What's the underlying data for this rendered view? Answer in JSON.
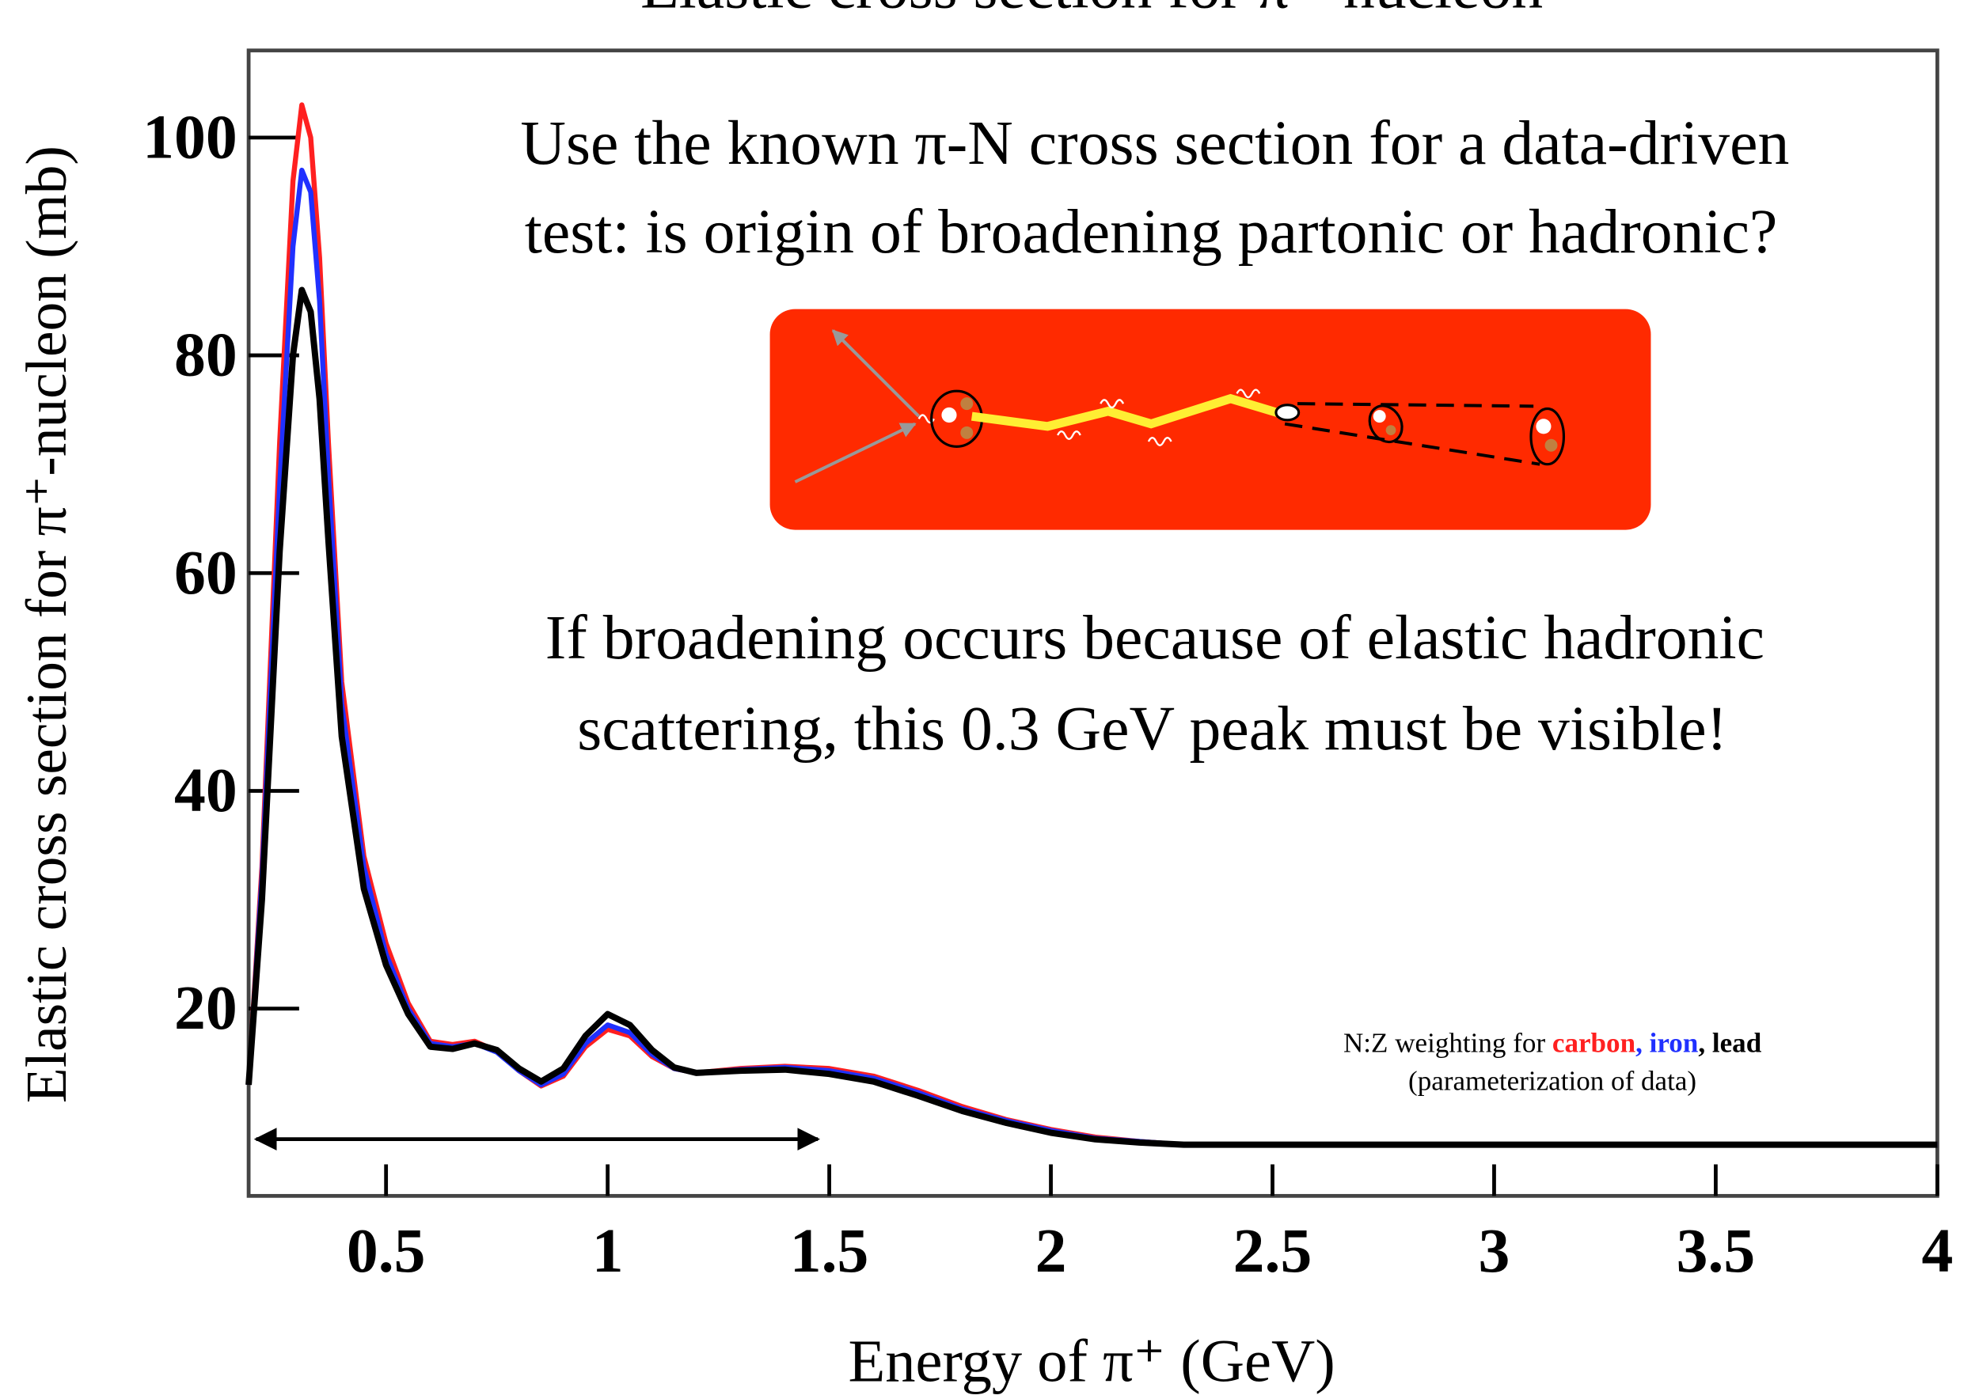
{
  "chart_data": {
    "type": "line",
    "title": "Elastic cross section for π⁺-nucleon",
    "x_label": "Energy of π⁺ (GeV)",
    "y_label": "Elastic cross section for π⁺-nucleon (mb)",
    "annotations": {
      "question": [
        "Use the known π-N cross section for a data-driven",
        "test: is origin of broadening partonic or hadronic?"
      ],
      "claim": [
        "If broadening occurs because of elastic hadronic",
        "scattering, this 0.3 GeV peak must be visible!"
      ],
      "legend_prefix": "N:Z weighting for",
      "legend_separator": ",",
      "legend_note": "(parameterization of data)"
    },
    "x": [
      0.19,
      0.22,
      0.26,
      0.29,
      0.31,
      0.33,
      0.35,
      0.37,
      0.4,
      0.45,
      0.5,
      0.55,
      0.6,
      0.65,
      0.7,
      0.75,
      0.8,
      0.85,
      0.9,
      0.95,
      1.0,
      1.05,
      1.1,
      1.15,
      1.2,
      1.3,
      1.4,
      1.5,
      1.6,
      1.7,
      1.8,
      1.9,
      2.0,
      2.1,
      2.2,
      2.3,
      2.5,
      3.0,
      3.5,
      4.0
    ],
    "series": [
      {
        "name": "carbon",
        "color": "#ff2020",
        "values": [
          13,
          33,
          72,
          96,
          103,
          100,
          89,
          72,
          50,
          34,
          26,
          20.5,
          17,
          16.7,
          17,
          16.1,
          14.3,
          12.9,
          13.8,
          16.5,
          18.1,
          17.5,
          15.6,
          14.5,
          14.1,
          14.5,
          14.7,
          14.5,
          13.8,
          12.5,
          11,
          9.8,
          8.9,
          8.2,
          7.8,
          7.5,
          7.5,
          7.5,
          7.5,
          7.5
        ]
      },
      {
        "name": "iron",
        "color": "#2030ff",
        "values": [
          13,
          32,
          68,
          90,
          97,
          95,
          85,
          69,
          48,
          33,
          25,
          20,
          16.8,
          16.5,
          16.8,
          16,
          14.3,
          13,
          14,
          16.8,
          18.5,
          17.8,
          15.8,
          14.5,
          14.1,
          14.4,
          14.6,
          14.3,
          13.6,
          12.3,
          10.8,
          9.7,
          8.8,
          8.1,
          7.8,
          7.5,
          7.5,
          7.5,
          7.5,
          7.5
        ]
      },
      {
        "name": "lead",
        "color": "#000000",
        "values": [
          13,
          30,
          62,
          80,
          86,
          84,
          76,
          63,
          45,
          31,
          24,
          19.5,
          16.5,
          16.3,
          16.8,
          16.2,
          14.5,
          13.3,
          14.5,
          17.5,
          19.5,
          18.5,
          16.2,
          14.6,
          14.1,
          14.3,
          14.4,
          14,
          13.3,
          12,
          10.6,
          9.5,
          8.6,
          8,
          7.7,
          7.5,
          7.5,
          7.5,
          7.5,
          7.5
        ]
      }
    ],
    "xlim": [
      0.19,
      4
    ],
    "ylim": [
      2.8,
      108
    ],
    "xticks": [
      0.5,
      1,
      1.5,
      2,
      2.5,
      3,
      3.5,
      4
    ],
    "yticks": [
      20,
      40,
      60,
      80,
      100
    ]
  }
}
